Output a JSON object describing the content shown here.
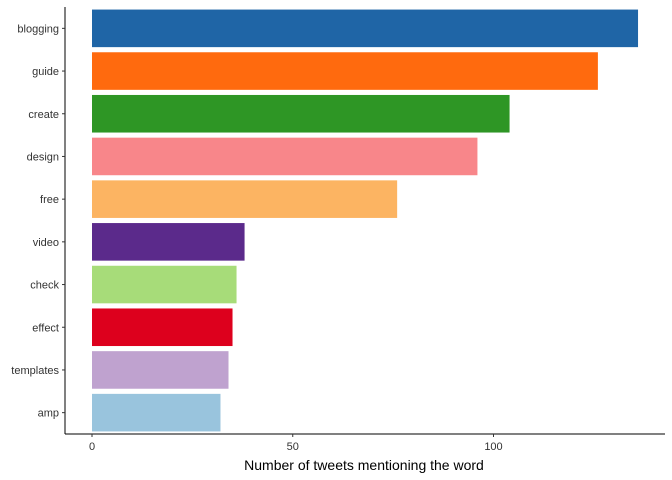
{
  "chart_data": {
    "type": "bar",
    "orientation": "horizontal",
    "title": "",
    "xlabel": "Number of tweets mentioning the word",
    "ylabel": "",
    "xlim": [
      0,
      140
    ],
    "xticks": [
      0,
      50,
      100
    ],
    "grid": false,
    "legend": "none",
    "categories": [
      "blogging",
      "guide",
      "create",
      "design",
      "free",
      "video",
      "check",
      "effect",
      "templates",
      "amp"
    ],
    "values": [
      136,
      126,
      104,
      96,
      76,
      38,
      36,
      35,
      34,
      32
    ],
    "colors": [
      "#1F65A6",
      "#FF6A0E",
      "#2E9625",
      "#F8868A",
      "#FCB462",
      "#5B2A8B",
      "#A7DC79",
      "#DD001D",
      "#BFA2CF",
      "#99C4DD"
    ]
  }
}
